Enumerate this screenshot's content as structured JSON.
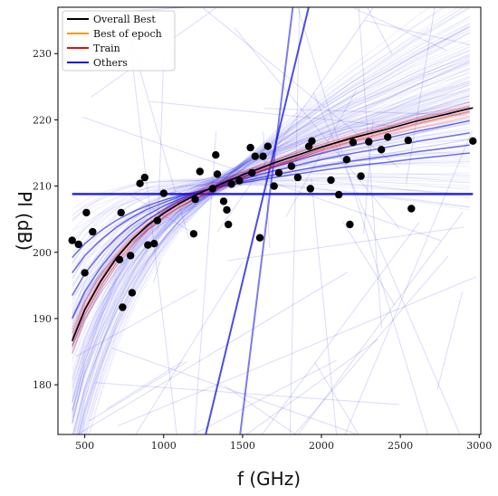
{
  "chart_data": {
    "type": "scatter",
    "xlabel": "f (GHz)",
    "ylabel": "Pl (dB)",
    "xlim": [
      330,
      3010
    ],
    "ylim": [
      172.5,
      237
    ],
    "xticks": [
      500,
      1000,
      1500,
      2000,
      2500,
      3000
    ],
    "yticks": [
      180,
      190,
      200,
      210,
      220,
      230
    ],
    "legend_position": "top-left",
    "grid": false,
    "legend": [
      {
        "label": "Overall Best",
        "color": "#000000"
      },
      {
        "label": "Best of epoch",
        "color": "#ff9900"
      },
      {
        "label": "Train",
        "color": "#e01010"
      },
      {
        "label": "Others",
        "color": "#1010e0"
      }
    ],
    "points": [
      [
        420,
        201.8
      ],
      [
        460,
        201.2
      ],
      [
        500,
        196.9
      ],
      [
        510,
        206.0
      ],
      [
        550,
        203.1
      ],
      [
        720,
        198.9
      ],
      [
        730,
        206.0
      ],
      [
        740,
        191.7
      ],
      [
        790,
        199.5
      ],
      [
        800,
        193.9
      ],
      [
        850,
        210.4
      ],
      [
        880,
        211.3
      ],
      [
        900,
        201.1
      ],
      [
        940,
        201.3
      ],
      [
        960,
        204.8
      ],
      [
        1000,
        208.9
      ],
      [
        1190,
        202.8
      ],
      [
        1200,
        208.0
      ],
      [
        1230,
        212.2
      ],
      [
        1310,
        209.6
      ],
      [
        1330,
        214.7
      ],
      [
        1340,
        211.8
      ],
      [
        1380,
        207.7
      ],
      [
        1400,
        206.4
      ],
      [
        1410,
        204.2
      ],
      [
        1430,
        210.3
      ],
      [
        1480,
        210.8
      ],
      [
        1550,
        215.8
      ],
      [
        1560,
        212.0
      ],
      [
        1580,
        214.5
      ],
      [
        1610,
        202.2
      ],
      [
        1630,
        214.5
      ],
      [
        1660,
        216.0
      ],
      [
        1700,
        210.0
      ],
      [
        1730,
        212.0
      ],
      [
        1810,
        213.0
      ],
      [
        1850,
        211.3
      ],
      [
        1920,
        216.0
      ],
      [
        1930,
        209.6
      ],
      [
        1940,
        216.8
      ],
      [
        2060,
        210.9
      ],
      [
        2110,
        208.7
      ],
      [
        2160,
        214.0
      ],
      [
        2180,
        204.2
      ],
      [
        2200,
        216.6
      ],
      [
        2250,
        211.5
      ],
      [
        2300,
        216.7
      ],
      [
        2380,
        215.5
      ],
      [
        2420,
        217.4
      ],
      [
        2550,
        216.9
      ],
      [
        2570,
        206.6
      ],
      [
        2960,
        216.8
      ]
    ],
    "overall_best_curve": {
      "x": [
        420,
        500,
        600,
        700,
        800,
        900,
        1000,
        1100,
        1200,
        1300,
        1400,
        1500,
        1600,
        1700,
        1800,
        1900,
        2000,
        2200,
        2400,
        2600,
        2800,
        2960
      ],
      "y": [
        186.6,
        191.3,
        195.6,
        199.1,
        201.9,
        204.1,
        205.9,
        207.4,
        208.6,
        209.7,
        210.7,
        211.7,
        212.6,
        213.5,
        214.3,
        215.1,
        215.9,
        217.3,
        218.5,
        219.8,
        220.9,
        221.8
      ]
    }
  }
}
